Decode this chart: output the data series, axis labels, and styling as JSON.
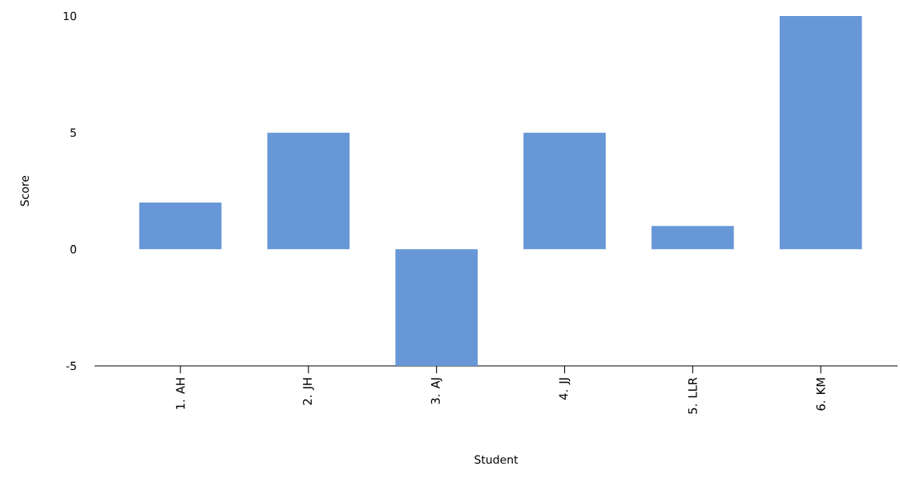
{
  "chart_data": {
    "type": "bar",
    "xlabel": "Student",
    "ylabel": "Score",
    "categories": [
      "1. AH",
      "2. JH",
      "3. AJ",
      "4. JJ",
      "5. LLR",
      "6. KM"
    ],
    "values": [
      2,
      5,
      -5,
      5,
      1,
      10
    ],
    "color": "#6797d6",
    "ylim": [
      -5,
      10
    ],
    "yticks": [
      -5,
      0,
      5,
      10
    ],
    "grid": false
  }
}
